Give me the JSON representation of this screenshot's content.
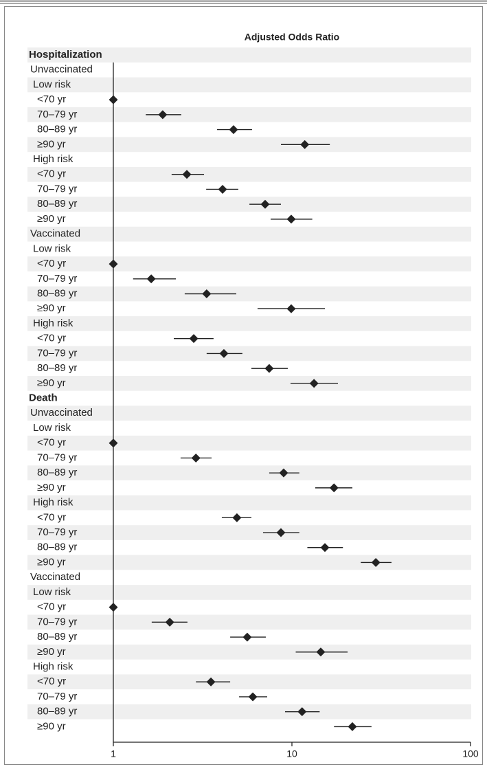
{
  "chart_data": {
    "type": "forest",
    "title": "Adjusted Odds Ratio",
    "xscale": "log",
    "xlim": [
      1,
      100
    ],
    "xticks": [
      1,
      10,
      100
    ],
    "color": "#222222",
    "sections": [
      {
        "name": "Hospitalization",
        "groups": [
          {
            "name": "Unvaccinated",
            "risks": [
              {
                "name": "Low risk",
                "rows": [
                  {
                    "label": "<70 yr",
                    "or": 1,
                    "lo": null,
                    "hi": null
                  },
                  {
                    "label": "70–79 yr",
                    "or": 1.89,
                    "lo": 1.52,
                    "hi": 2.4
                  },
                  {
                    "label": "80–89 yr",
                    "or": 4.71,
                    "lo": 3.81,
                    "hi": 5.98
                  },
                  {
                    "label": "≥90 yr",
                    "or": 11.8,
                    "lo": 8.68,
                    "hi": 16.3
                  }
                ]
              },
              {
                "name": "High risk",
                "rows": [
                  {
                    "label": "<70 yr",
                    "or": 2.58,
                    "lo": 2.12,
                    "hi": 3.22
                  },
                  {
                    "label": "70–79 yr",
                    "or": 4.09,
                    "lo": 3.31,
                    "hi": 5.01
                  },
                  {
                    "label": "80–89 yr",
                    "or": 7.08,
                    "lo": 5.78,
                    "hi": 8.68
                  },
                  {
                    "label": "≥90 yr",
                    "or": 9.91,
                    "lo": 7.6,
                    "hi": 13
                  }
                ]
              }
            ]
          },
          {
            "name": "Vaccinated",
            "risks": [
              {
                "name": "Low risk",
                "rows": [
                  {
                    "label": "<70 yr",
                    "or": 1,
                    "lo": null,
                    "hi": null
                  },
                  {
                    "label": "70–79 yr",
                    "or": 1.63,
                    "lo": 1.29,
                    "hi": 2.24
                  },
                  {
                    "label": "80–89 yr",
                    "or": 3.33,
                    "lo": 2.51,
                    "hi": 4.88
                  },
                  {
                    "label": "≥90 yr",
                    "or": 9.91,
                    "lo": 6.42,
                    "hi": 15.3
                  }
                ]
              },
              {
                "name": "High risk",
                "rows": [
                  {
                    "label": "<70 yr",
                    "or": 2.82,
                    "lo": 2.18,
                    "hi": 3.64
                  },
                  {
                    "label": "70–79 yr",
                    "or": 4.16,
                    "lo": 3.33,
                    "hi": 5.28
                  },
                  {
                    "label": "80–89 yr",
                    "or": 7.46,
                    "lo": 5.93,
                    "hi": 9.48
                  },
                  {
                    "label": "≥90 yr",
                    "or": 13.3,
                    "lo": 9.82,
                    "hi": 18.1
                  }
                ]
              }
            ]
          }
        ]
      },
      {
        "name": "Death",
        "groups": [
          {
            "name": "Unvaccinated",
            "risks": [
              {
                "name": "Low risk",
                "rows": [
                  {
                    "label": "<70 yr",
                    "or": 1,
                    "lo": null,
                    "hi": null
                  },
                  {
                    "label": "70–79 yr",
                    "or": 2.9,
                    "lo": 2.38,
                    "hi": 3.55
                  },
                  {
                    "label": "80–89 yr",
                    "or": 8.99,
                    "lo": 7.46,
                    "hi": 11
                  },
                  {
                    "label": "≥90 yr",
                    "or": 17.2,
                    "lo": 13.5,
                    "hi": 21.8
                  }
                ]
              },
              {
                "name": "High risk",
                "rows": [
                  {
                    "label": "<70 yr",
                    "or": 4.92,
                    "lo": 4.05,
                    "hi": 5.93
                  },
                  {
                    "label": "70–79 yr",
                    "or": 8.68,
                    "lo": 6.89,
                    "hi": 11
                  },
                  {
                    "label": "80–89 yr",
                    "or": 15.3,
                    "lo": 12.2,
                    "hi": 19.3
                  },
                  {
                    "label": "≥90 yr",
                    "or": 29.5,
                    "lo": 24.3,
                    "hi": 36.1
                  }
                ]
              }
            ]
          },
          {
            "name": "Vaccinated",
            "risks": [
              {
                "name": "Low risk",
                "rows": [
                  {
                    "label": "<70 yr",
                    "or": 1,
                    "lo": null,
                    "hi": null
                  },
                  {
                    "label": "70–79 yr",
                    "or": 2.07,
                    "lo": 1.64,
                    "hi": 2.6
                  },
                  {
                    "label": "80–89 yr",
                    "or": 5.62,
                    "lo": 4.51,
                    "hi": 7.14
                  },
                  {
                    "label": "≥90 yr",
                    "or": 14.5,
                    "lo": 10.5,
                    "hi": 20.5
                  }
                ]
              },
              {
                "name": "High risk",
                "rows": [
                  {
                    "label": "<70 yr",
                    "or": 3.52,
                    "lo": 2.9,
                    "hi": 4.51
                  },
                  {
                    "label": "70–79 yr",
                    "or": 6.04,
                    "lo": 5.06,
                    "hi": 7.27
                  },
                  {
                    "label": "80–89 yr",
                    "or": 11.4,
                    "lo": 9.15,
                    "hi": 14.3
                  },
                  {
                    "label": "≥90 yr",
                    "or": 21.8,
                    "lo": 17.2,
                    "hi": 27.9
                  }
                ]
              }
            ]
          }
        ]
      }
    ]
  }
}
